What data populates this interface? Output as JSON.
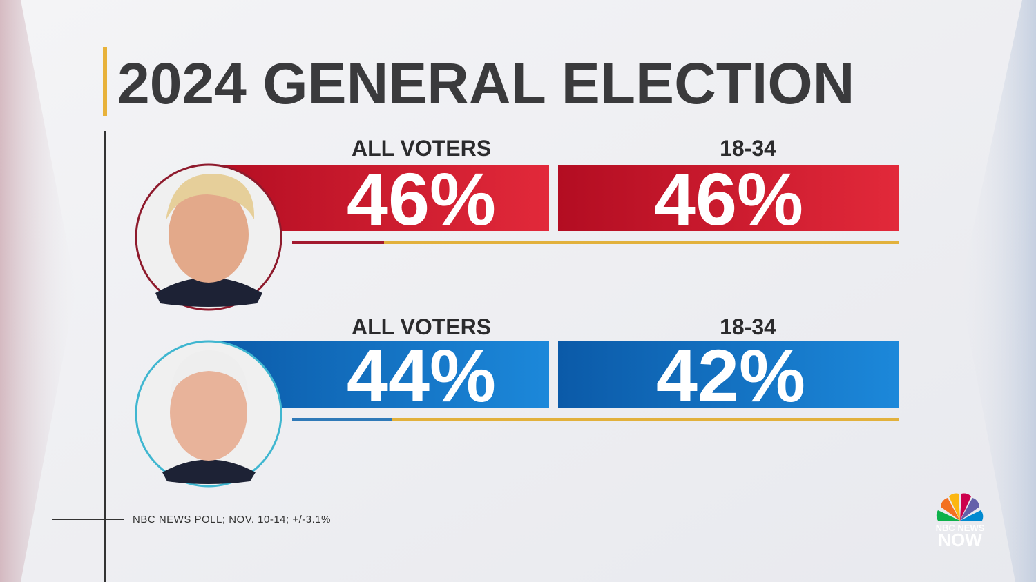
{
  "header": {
    "title": "2024 GENERAL ELECTION"
  },
  "rows": [
    {
      "cells": [
        {
          "label": "ALL VOTERS",
          "value": "46%"
        },
        {
          "label": "18-34",
          "value": "46%"
        }
      ]
    },
    {
      "cells": [
        {
          "label": "ALL VOTERS",
          "value": "44%"
        },
        {
          "label": "18-34",
          "value": "42%"
        }
      ]
    }
  ],
  "footer": {
    "source": "NBC NEWS POLL; NOV. 10-14; +/-3.1%"
  },
  "logo": {
    "brand": "NBC NEWS",
    "product": "NOW"
  }
}
